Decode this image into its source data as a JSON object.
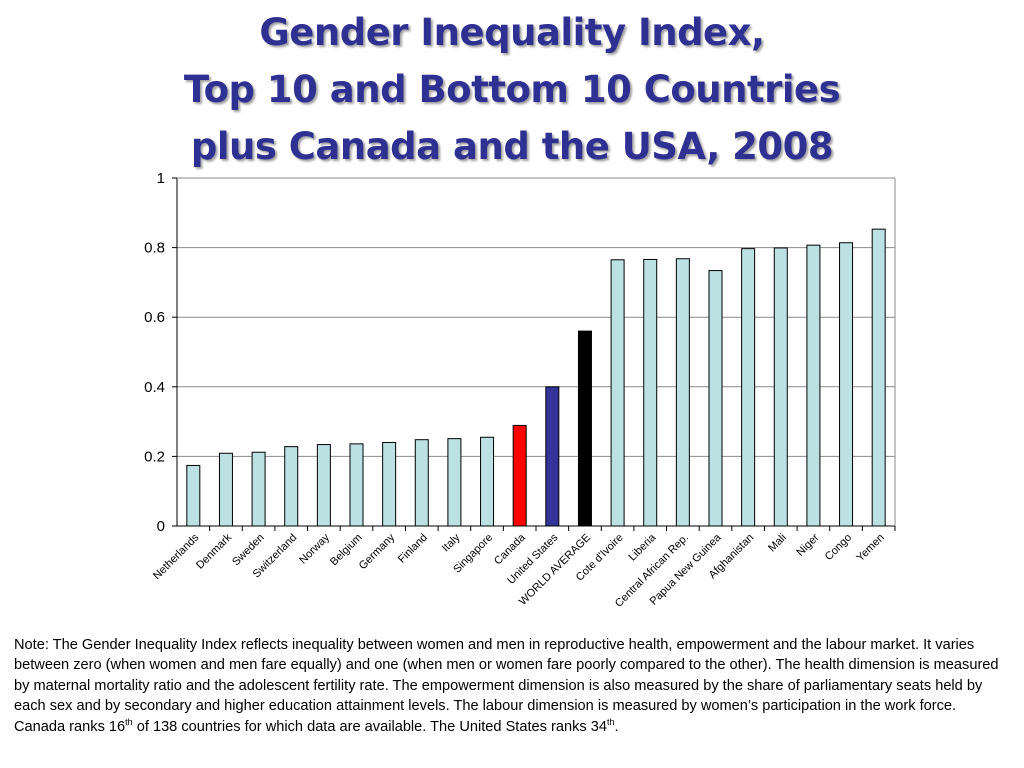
{
  "title": {
    "line1": "Gender Inequality Index,",
    "line2": "Top 10 and Bottom 10 Countries",
    "line3": "plus Canada and the USA, 2008"
  },
  "colors": {
    "default_bar": "#BCE1E3",
    "canada": "#FF0000",
    "united_states": "#333399",
    "world_average": "#000000",
    "title": "#2E3092"
  },
  "chart_data": {
    "type": "bar",
    "categories": [
      "Netherlands",
      "Denmark",
      "Sweden",
      "Switzerland",
      "Norway",
      "Belgium",
      "Germany",
      "Finland",
      "Italy",
      "Singapore",
      "Canada",
      "United States",
      "WORLD AVERAGE",
      "Cote d'Ivoire",
      "Liberia",
      "Central African Rep.",
      "Papua New Guinea",
      "Afghanistan",
      "Mali",
      "Niger",
      "Congo",
      "Yemen"
    ],
    "values": [
      0.174,
      0.209,
      0.212,
      0.228,
      0.234,
      0.236,
      0.24,
      0.248,
      0.251,
      0.255,
      0.289,
      0.4,
      0.56,
      0.765,
      0.766,
      0.768,
      0.734,
      0.797,
      0.799,
      0.807,
      0.814,
      0.853
    ],
    "bar_colors": [
      "default_bar",
      "default_bar",
      "default_bar",
      "default_bar",
      "default_bar",
      "default_bar",
      "default_bar",
      "default_bar",
      "default_bar",
      "default_bar",
      "canada",
      "united_states",
      "world_average",
      "default_bar",
      "default_bar",
      "default_bar",
      "default_bar",
      "default_bar",
      "default_bar",
      "default_bar",
      "default_bar",
      "default_bar"
    ],
    "ylim": [
      0,
      1
    ],
    "yticks": [
      0,
      0.2,
      0.4,
      0.6,
      0.8,
      1
    ],
    "ytick_labels": [
      "0",
      "0.2",
      "0.4",
      "0.6",
      "0.8",
      "1"
    ],
    "grid": true,
    "xlabel": "",
    "ylabel": ""
  },
  "note": {
    "text_a": "Note: The Gender Inequality Index reflects inequality between women and men in reproductive health, empowerment and the labour market. It varies between zero (when women and men fare equally) and one (when men or women fare poorly compared to the other). The health dimension is measured by maternal mortality ratio and the adolescent fertility rate. The empowerment dimension is also measured by the share of parliamentary seats held by each sex and by secondary and higher education attainment levels. The labour dimension is measured by women’s participation in the work force. Canada ranks 16",
    "sup_a": "th",
    "text_b": " of 138 countries for which data are available. The United States ranks 34",
    "sup_b": "th",
    "text_c": "."
  }
}
